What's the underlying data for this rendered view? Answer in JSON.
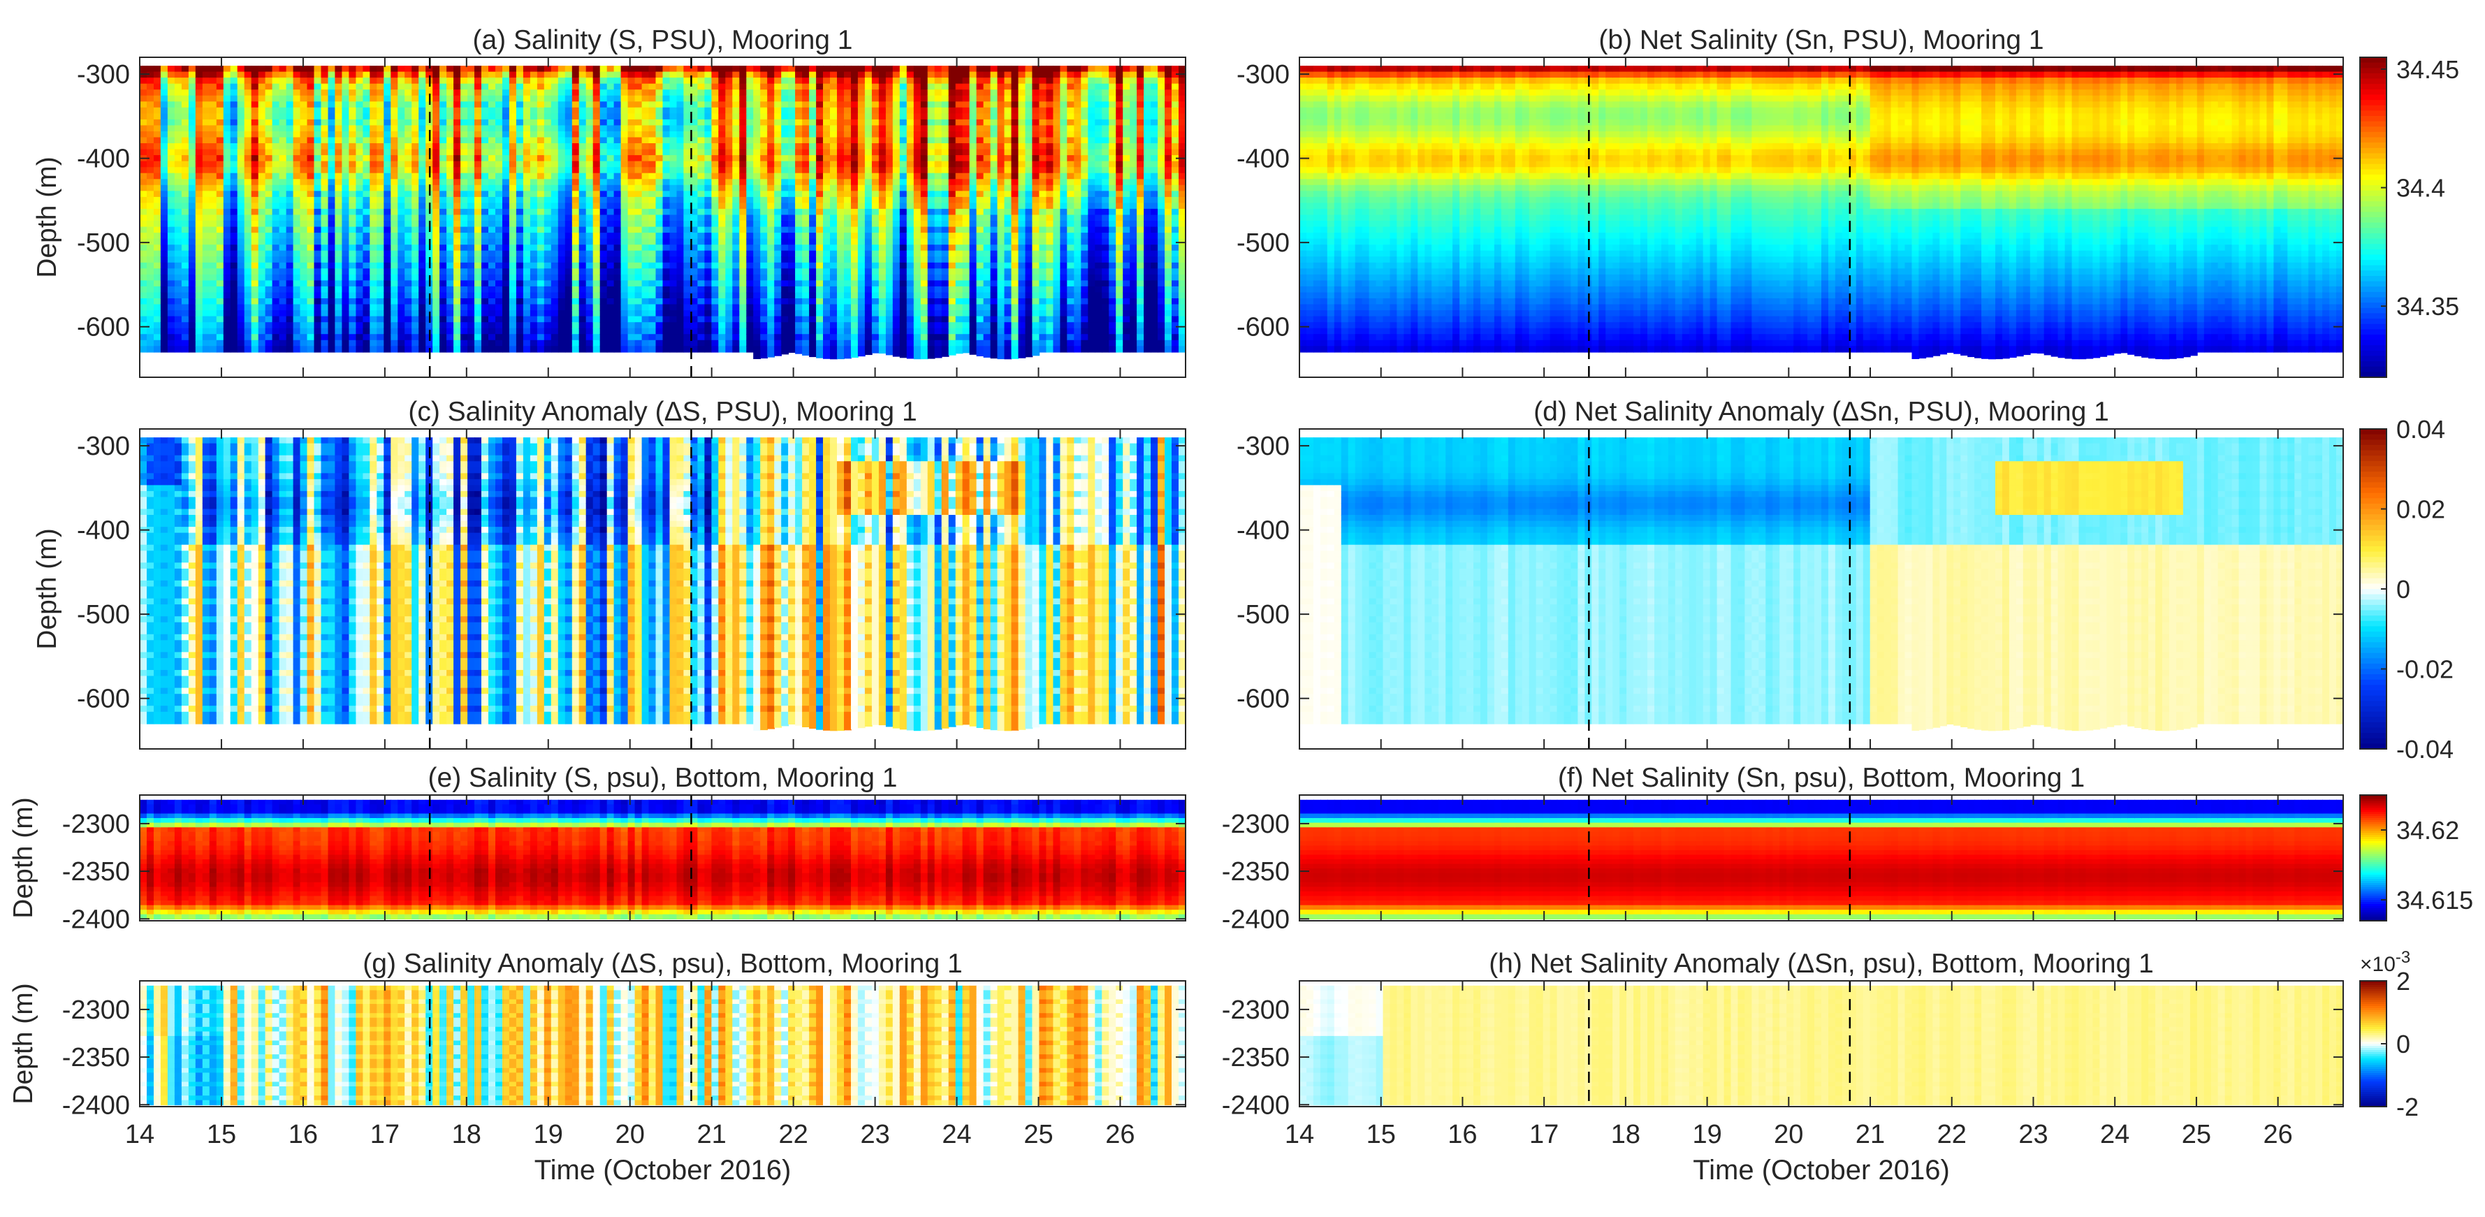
{
  "colormap": [
    "#00008f",
    "#0000ff",
    "#0080ff",
    "#00ffff",
    "#80ff80",
    "#ffff00",
    "#ff8000",
    "#ff0000",
    "#800000"
  ],
  "axis_color": "#262626",
  "shared": {
    "xlabel": "Time (October 2016)",
    "ylabel": "Depth (m)",
    "xlim": [
      14,
      26.8
    ],
    "xticks": [
      14,
      15,
      16,
      17,
      18,
      19,
      20,
      21,
      22,
      23,
      24,
      25,
      26
    ],
    "event_lines": [
      17.55,
      20.75
    ]
  },
  "chart_data": [
    {
      "id": "a",
      "type": "heatmap",
      "title": "(a) Salinity (S, PSU), Mooring 1",
      "ylim": [
        -660,
        -280
      ],
      "yticks": [
        -300,
        -400,
        -500,
        -600
      ],
      "ytick_labels": [
        "-300",
        "-400",
        "-500",
        "-600"
      ],
      "data_depth": [
        -630,
        -290
      ],
      "kind": "salinity_upper",
      "noise": 0.55
    },
    {
      "id": "b",
      "type": "heatmap",
      "title": "(b) Net Salinity (Sn, PSU), Mooring 1",
      "ylim": [
        -660,
        -280
      ],
      "yticks": [
        -300,
        -400,
        -500,
        -600
      ],
      "ytick_labels": [
        "-300",
        "-400",
        "-500",
        "-600"
      ],
      "data_depth": [
        -630,
        -290
      ],
      "kind": "salinity_upper",
      "noise": 0.05,
      "colorbar": {
        "range": [
          34.32,
          34.455
        ],
        "ticks": [
          34.35,
          34.4,
          34.45
        ],
        "tick_labels": [
          "34.35",
          "34.4",
          "34.45"
        ]
      }
    },
    {
      "id": "c",
      "type": "heatmap",
      "title": "(c) Salinity Anomaly (ΔS, PSU), Mooring 1",
      "ylim": [
        -660,
        -280
      ],
      "yticks": [
        -300,
        -400,
        -500,
        -600
      ],
      "ytick_labels": [
        "-300",
        "-400",
        "-500",
        "-600"
      ],
      "data_depth": [
        -630,
        -290
      ],
      "kind": "anomaly_upper",
      "noise": 0.7
    },
    {
      "id": "d",
      "type": "heatmap",
      "title": "(d) Net Salinity Anomaly (ΔSn, PSU), Mooring 1",
      "ylim": [
        -660,
        -280
      ],
      "yticks": [
        -300,
        -400,
        -500,
        -600
      ],
      "ytick_labels": [
        "-300",
        "-400",
        "-500",
        "-600"
      ],
      "data_depth": [
        -630,
        -290
      ],
      "kind": "anomaly_upper",
      "noise": 0.05,
      "colorbar": {
        "range": [
          -0.04,
          0.04
        ],
        "ticks": [
          -0.04,
          -0.02,
          0,
          0.02,
          0.04
        ],
        "tick_labels": [
          "-0.04",
          "-0.02",
          "0",
          "0.02",
          "0.04"
        ]
      }
    },
    {
      "id": "e",
      "type": "heatmap",
      "title": "(e) Salinity (S, psu), Bottom, Mooring 1",
      "ylim": [
        -2402,
        -2270
      ],
      "yticks": [
        -2300,
        -2350,
        -2400
      ],
      "ytick_labels": [
        "-2300",
        "-2350",
        "-2400"
      ],
      "data_depth": [
        -2400,
        -2275
      ],
      "kind": "salinity_bottom",
      "noise": 0.35
    },
    {
      "id": "f",
      "type": "heatmap",
      "title": "(f) Net Salinity (Sn, psu), Bottom, Mooring 1",
      "ylim": [
        -2402,
        -2270
      ],
      "yticks": [
        -2300,
        -2350,
        -2400
      ],
      "ytick_labels": [
        "-2300",
        "-2350",
        "-2400"
      ],
      "data_depth": [
        -2400,
        -2275
      ],
      "kind": "salinity_bottom",
      "noise": 0.03,
      "colorbar": {
        "range": [
          34.6135,
          34.6225
        ],
        "ticks": [
          34.615,
          34.62
        ],
        "tick_labels": [
          "34.615",
          "34.62"
        ]
      }
    },
    {
      "id": "g",
      "type": "heatmap",
      "title": "(g) Salinity Anomaly (ΔS, psu), Bottom, Mooring 1",
      "ylim": [
        -2402,
        -2270
      ],
      "yticks": [
        -2300,
        -2350,
        -2400
      ],
      "ytick_labels": [
        "-2300",
        "-2350",
        "-2400"
      ],
      "data_depth": [
        -2400,
        -2275
      ],
      "kind": "anomaly_bottom",
      "noise": 0.6
    },
    {
      "id": "h",
      "type": "heatmap",
      "title": "(h) Net Salinity Anomaly (ΔSn, psu), Bottom, Mooring 1",
      "ylim": [
        -2402,
        -2270
      ],
      "yticks": [
        -2300,
        -2350,
        -2400
      ],
      "ytick_labels": [
        "-2300",
        "-2350",
        "-2400"
      ],
      "data_depth": [
        -2400,
        -2275
      ],
      "kind": "anomaly_bottom",
      "noise": 0.05,
      "colorbar": {
        "range": [
          -2,
          2
        ],
        "ticks": [
          -2,
          0,
          2
        ],
        "tick_labels": [
          "-2",
          "0",
          "2"
        ],
        "exponent_label": "×10",
        "exponent": "-3"
      }
    }
  ]
}
